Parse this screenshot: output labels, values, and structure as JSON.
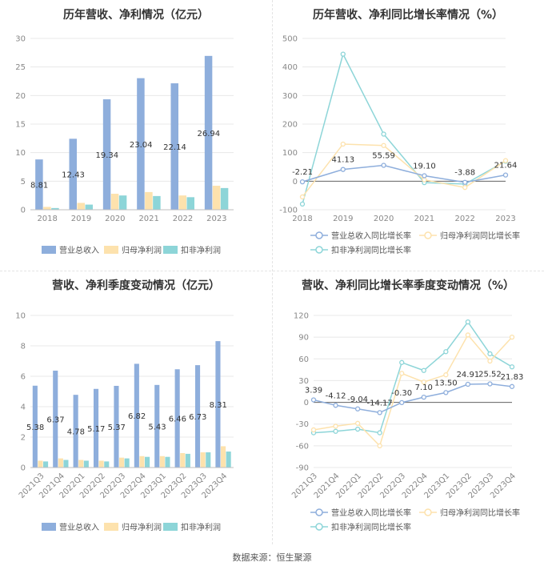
{
  "source": "数据来源：恒生聚源",
  "colors": {
    "revenue": "#8eaedc",
    "net": "#fde2ad",
    "deduct": "#8dd5d8",
    "grid": "#e8e8e8",
    "axis": "#bfbfbf"
  },
  "chart_data": [
    {
      "type": "bar",
      "title": "历年营收、净利情况（亿元）",
      "categories": [
        "2018",
        "2019",
        "2020",
        "2021",
        "2022",
        "2023"
      ],
      "ylim": [
        0,
        30
      ],
      "yticks": [
        0,
        5,
        10,
        15,
        20,
        25,
        30
      ],
      "grid": true,
      "legend": "bottom",
      "series": [
        {
          "name": "营业总收入",
          "values": [
            8.81,
            12.43,
            19.34,
            23.04,
            22.14,
            26.94
          ],
          "labels": [
            "8.81",
            "12.43",
            "19.34",
            "23.04",
            "22.14",
            "26.94"
          ]
        },
        {
          "name": "归母净利润",
          "values": [
            0.5,
            1.2,
            2.8,
            3.1,
            2.5,
            4.2
          ]
        },
        {
          "name": "扣非净利润",
          "values": [
            0.3,
            0.9,
            2.5,
            2.4,
            2.2,
            3.8
          ]
        }
      ]
    },
    {
      "type": "line",
      "title": "历年营收、净利同比增长率情况（%）",
      "categories": [
        "2018",
        "2019",
        "2020",
        "2021",
        "2022",
        "2023"
      ],
      "ylim": [
        -100,
        500
      ],
      "yticks": [
        -100,
        0,
        100,
        200,
        300,
        400,
        500
      ],
      "grid": true,
      "legend": "bottom",
      "series": [
        {
          "name": "营业总收入同比增长率",
          "values": [
            -2.21,
            41.13,
            55.59,
            19.1,
            -3.88,
            21.64
          ],
          "labels": [
            "-2.21",
            "41.13",
            "55.59",
            "19.10",
            "-3.88",
            "21.64"
          ]
        },
        {
          "name": "归母净利润同比增长率",
          "values": [
            -55,
            130,
            125,
            5,
            -22,
            72
          ]
        },
        {
          "name": "扣非净利润同比增长率",
          "values": [
            -80,
            445,
            165,
            -5,
            -10,
            70
          ]
        }
      ]
    },
    {
      "type": "bar",
      "title": "营收、净利季度变动情况（亿元）",
      "categories": [
        "2021Q3",
        "2021Q4",
        "2022Q1",
        "2022Q2",
        "2022Q3",
        "2022Q4",
        "2023Q1",
        "2023Q2",
        "2023Q3",
        "2023Q4"
      ],
      "ylim": [
        0,
        10
      ],
      "yticks": [
        0,
        2,
        4,
        6,
        8,
        10
      ],
      "grid": true,
      "legend": "bottom",
      "series": [
        {
          "name": "营业总收入",
          "values": [
            5.38,
            6.37,
            4.78,
            5.17,
            5.37,
            6.82,
            5.43,
            6.46,
            6.73,
            8.31
          ],
          "labels": [
            "5.38",
            "6.37",
            "4.78",
            "5.17",
            "5.37",
            "6.82",
            "5.43",
            "6.46",
            "6.73",
            "8.31"
          ]
        },
        {
          "name": "归母净利润",
          "values": [
            0.45,
            0.6,
            0.5,
            0.45,
            0.65,
            0.75,
            0.75,
            0.95,
            1.0,
            1.4
          ]
        },
        {
          "name": "扣非净利润",
          "values": [
            0.4,
            0.5,
            0.45,
            0.4,
            0.6,
            0.7,
            0.7,
            0.9,
            1.0,
            1.05
          ]
        }
      ]
    },
    {
      "type": "line",
      "title": "营收、净利同比增长率季度变动情况（%）",
      "categories": [
        "2021Q3",
        "2021Q4",
        "2022Q1",
        "2022Q2",
        "2022Q3",
        "2022Q4",
        "2023Q1",
        "2023Q2",
        "2023Q3",
        "2023Q4"
      ],
      "ylim": [
        -90,
        120
      ],
      "yticks": [
        -90,
        -60,
        -30,
        0,
        30,
        60,
        90,
        120
      ],
      "grid": true,
      "legend": "bottom",
      "series": [
        {
          "name": "营业总收入同比增长率",
          "values": [
            3.39,
            -4.12,
            -9.04,
            -14.17,
            -0.3,
            7.1,
            13.5,
            24.91,
            25.52,
            21.83
          ],
          "labels": [
            "3.39",
            "-4.12",
            "-9.04",
            "-14.17",
            "-0.30",
            "7.10",
            "13.50",
            "24.91",
            "25.52",
            "21.83"
          ]
        },
        {
          "name": "归母净利润同比增长率",
          "values": [
            -38,
            -33,
            -29,
            -60,
            40,
            28,
            38,
            93,
            57,
            90
          ]
        },
        {
          "name": "扣非净利润同比增长率",
          "values": [
            -42,
            -40,
            -37,
            -42,
            55,
            44,
            70,
            111,
            67,
            49
          ]
        }
      ]
    }
  ]
}
